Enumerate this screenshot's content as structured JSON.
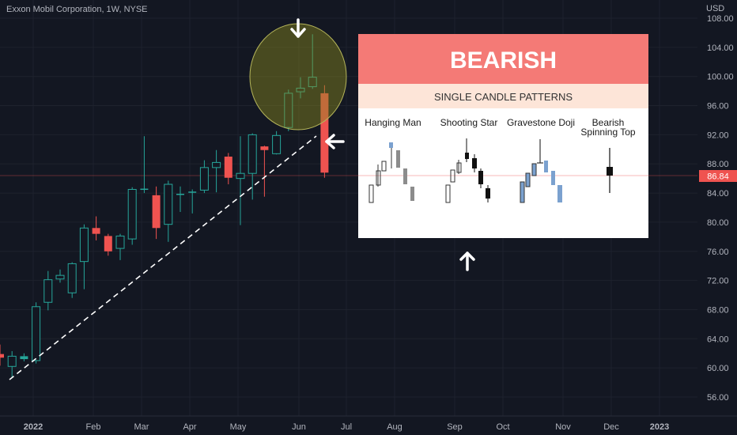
{
  "title": "Exxon Mobil Corporation, 1W, NYSE",
  "chart_data": {
    "type": "candlestick",
    "currency": "USD",
    "last_price": "86.84",
    "y_ticks": [
      "108.00",
      "104.00",
      "100.00",
      "96.00",
      "92.00",
      "88.00",
      "84.00",
      "80.00",
      "76.00",
      "72.00",
      "68.00",
      "64.00",
      "60.00",
      "56.00"
    ],
    "ylim": [
      53.5,
      110.5
    ],
    "x_labels": [
      "2022",
      "Feb",
      "Mar",
      "Apr",
      "May",
      "Jun",
      "Jul",
      "Aug",
      "Sep",
      "Oct",
      "Nov",
      "Dec",
      "2023"
    ],
    "colors": {
      "up": "#26a69a",
      "down": "#ef5350",
      "background": "#131722"
    },
    "candles": [
      {
        "o": 61.9,
        "h": 63.2,
        "l": 60.3,
        "c": 61.4
      },
      {
        "o": 60.2,
        "h": 62.3,
        "l": 58.7,
        "c": 61.6
      },
      {
        "o": 61.2,
        "h": 62.0,
        "l": 60.9,
        "c": 61.6
      },
      {
        "o": 61.0,
        "h": 69.0,
        "l": 60.6,
        "c": 68.4
      },
      {
        "o": 69.0,
        "h": 73.3,
        "l": 67.9,
        "c": 72.1
      },
      {
        "o": 72.2,
        "h": 73.5,
        "l": 71.7,
        "c": 72.7
      },
      {
        "o": 70.3,
        "h": 74.5,
        "l": 69.6,
        "c": 74.3
      },
      {
        "o": 74.6,
        "h": 79.7,
        "l": 70.8,
        "c": 79.2
      },
      {
        "o": 79.2,
        "h": 80.8,
        "l": 77.5,
        "c": 78.4
      },
      {
        "o": 78.1,
        "h": 78.4,
        "l": 75.4,
        "c": 76.0
      },
      {
        "o": 76.4,
        "h": 78.4,
        "l": 74.8,
        "c": 78.1
      },
      {
        "o": 77.7,
        "h": 84.8,
        "l": 76.9,
        "c": 84.5
      },
      {
        "o": 84.5,
        "h": 91.8,
        "l": 84.0,
        "c": 84.6
      },
      {
        "o": 83.7,
        "h": 84.9,
        "l": 77.7,
        "c": 79.2
      },
      {
        "o": 79.7,
        "h": 85.7,
        "l": 77.3,
        "c": 85.2
      },
      {
        "o": 83.9,
        "h": 84.9,
        "l": 81.4,
        "c": 83.9
      },
      {
        "o": 84.1,
        "h": 84.5,
        "l": 81.2,
        "c": 84.2
      },
      {
        "o": 84.4,
        "h": 88.5,
        "l": 84.0,
        "c": 87.5
      },
      {
        "o": 87.5,
        "h": 89.9,
        "l": 84.1,
        "c": 88.2
      },
      {
        "o": 89.0,
        "h": 89.5,
        "l": 85.2,
        "c": 86.1
      },
      {
        "o": 86.0,
        "h": 91.8,
        "l": 79.6,
        "c": 86.7
      },
      {
        "o": 86.7,
        "h": 92.2,
        "l": 83.1,
        "c": 92.0
      },
      {
        "o": 90.4,
        "h": 90.5,
        "l": 83.5,
        "c": 89.9
      },
      {
        "o": 89.4,
        "h": 92.5,
        "l": 89.3,
        "c": 91.9
      },
      {
        "o": 93.0,
        "h": 98.2,
        "l": 92.5,
        "c": 97.7
      },
      {
        "o": 97.9,
        "h": 99.9,
        "l": 97.0,
        "c": 98.4
      },
      {
        "o": 98.6,
        "h": 105.8,
        "l": 98.3,
        "c": 99.9
      },
      {
        "o": 97.7,
        "h": 98.8,
        "l": 86.1,
        "c": 86.8
      }
    ],
    "annotations": {
      "trendline": "dashed-white",
      "highlight": "yellow-ellipse"
    }
  },
  "inset": {
    "header": "BEARISH",
    "subheader": "SINGLE CANDLE PATTERNS",
    "patterns": [
      "Hanging Man",
      "Shooting Star",
      "Gravestone Doji",
      "Bearish\nSpinning Top"
    ]
  }
}
